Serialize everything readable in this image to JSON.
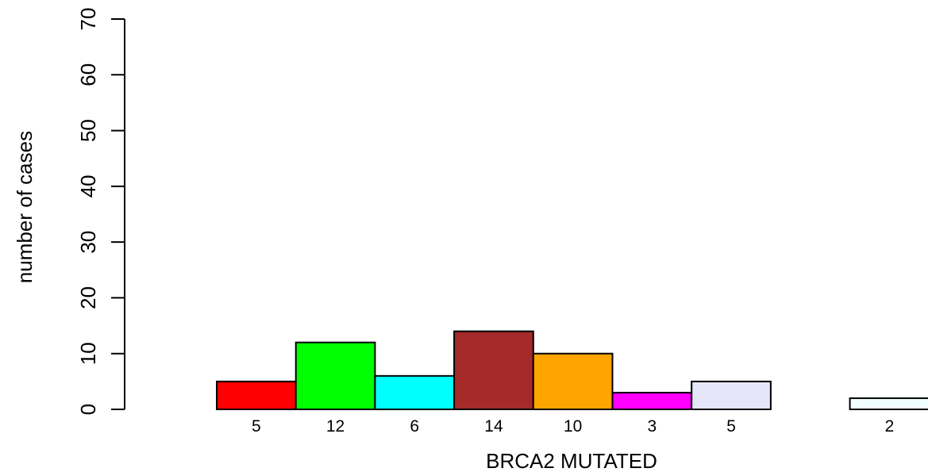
{
  "chart_data": {
    "type": "bar",
    "values": [
      5,
      12,
      6,
      14,
      10,
      3,
      5,
      0,
      2
    ],
    "bar_labels": [
      "5",
      "12",
      "6",
      "14",
      "10",
      "3",
      "5",
      "",
      "2"
    ],
    "colors": [
      "#ff0000",
      "#00ff00",
      "#00ffff",
      "#a52a2a",
      "#ffa500",
      "#ff00ff",
      "#e6e6fa",
      "#ffffff",
      "#f0ffff"
    ],
    "xlabel": "BRCA2 MUTATED",
    "ylabel": "number of cases",
    "ylim": [
      0,
      70
    ],
    "yticks": [
      "0",
      "10",
      "20",
      "30",
      "40",
      "50",
      "60",
      "70"
    ],
    "grid": false,
    "legend": "none"
  }
}
